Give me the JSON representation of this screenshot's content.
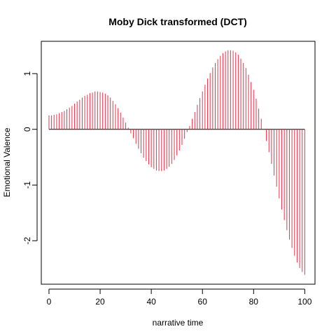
{
  "chart_data": {
    "type": "bar",
    "title": "Moby Dick transformed (DCT)",
    "xlabel": "narrative time",
    "ylabel": "Emotional Valence",
    "xlim": [
      -3,
      104
    ],
    "ylim": [
      -2.78,
      1.58
    ],
    "xticks": [
      0,
      20,
      40,
      60,
      80,
      100
    ],
    "yticks": [
      -2,
      -1,
      0,
      1
    ],
    "x_step": 1,
    "values": [
      0.25,
      0.25,
      0.26,
      0.27,
      0.29,
      0.31,
      0.33,
      0.36,
      0.39,
      0.42,
      0.46,
      0.5,
      0.53,
      0.57,
      0.6,
      0.62,
      0.65,
      0.66,
      0.68,
      0.68,
      0.67,
      0.66,
      0.64,
      0.61,
      0.57,
      0.51,
      0.45,
      0.38,
      0.3,
      0.21,
      0.12,
      0.03,
      -0.07,
      -0.16,
      -0.26,
      -0.35,
      -0.43,
      -0.51,
      -0.57,
      -0.63,
      -0.68,
      -0.71,
      -0.74,
      -0.75,
      -0.75,
      -0.74,
      -0.71,
      -0.67,
      -0.62,
      -0.55,
      -0.47,
      -0.38,
      -0.28,
      -0.17,
      -0.05,
      0.06,
      0.19,
      0.31,
      0.44,
      0.56,
      0.68,
      0.8,
      0.91,
      1.01,
      1.11,
      1.19,
      1.26,
      1.32,
      1.37,
      1.4,
      1.42,
      1.42,
      1.41,
      1.38,
      1.34,
      1.27,
      1.19,
      1.1,
      0.98,
      0.85,
      0.71,
      0.55,
      0.37,
      0.19,
      -0.01,
      -0.21,
      -0.41,
      -0.62,
      -0.83,
      -1.03,
      -1.24,
      -1.44,
      -1.63,
      -1.81,
      -1.98,
      -2.13,
      -2.27,
      -2.39,
      -2.49,
      -2.56,
      -2.61
    ],
    "bar_color": "#e8334a",
    "baseline": 0,
    "grid": false,
    "legend": "none"
  }
}
